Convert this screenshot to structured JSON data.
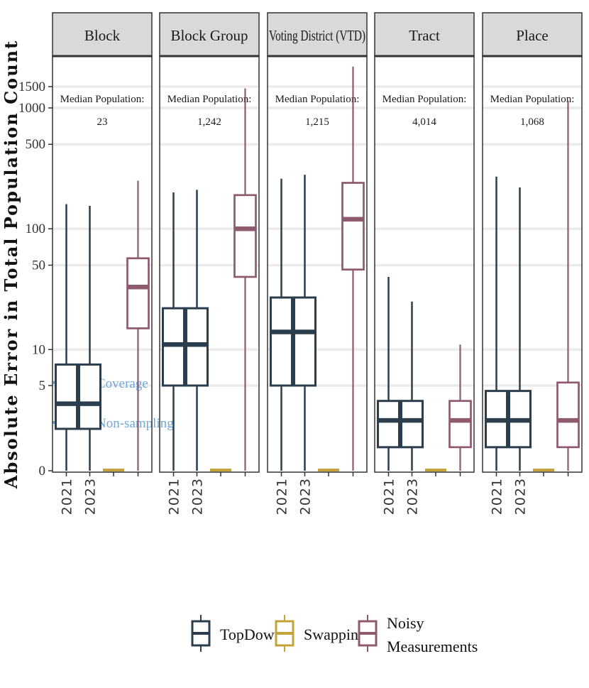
{
  "chart_data": {
    "type": "boxplot",
    "ylabel": "Absolute Error in Total Population Count",
    "y_scale": "pseudo-log",
    "y_ticks": [
      0,
      5,
      10,
      50,
      100,
      500,
      1000,
      1500
    ],
    "y_tick_labels": [
      "0",
      "5",
      "10",
      "50",
      "100",
      "500",
      "1000",
      "1500"
    ],
    "median_label": "Median Population:",
    "x_tick_labels": [
      "2021",
      "2023",
      "",
      ""
    ],
    "series": [
      {
        "name": "TopDown",
        "color": "#2c3e4c"
      },
      {
        "name": "Swapping",
        "color": "#c4a43a"
      },
      {
        "name": "Noisy Measurements",
        "color": "#8e5a6e"
      }
    ],
    "reference_lines": [
      {
        "label": "Coverage",
        "value": 5.3,
        "color": "#6fa8dc"
      },
      {
        "label": "Non-sampling",
        "value": 2.4,
        "color": "#6fa8dc"
      }
    ],
    "panels": [
      {
        "name": "Block",
        "median_population": "23",
        "boxes": [
          {
            "label": "2021",
            "series": "TopDown",
            "min": 0,
            "q1": 2.1,
            "median": 3.5,
            "q3": 7.5,
            "max": 160
          },
          {
            "label": "2023",
            "series": "TopDown",
            "min": 0,
            "q1": 2.1,
            "median": 3.5,
            "q3": 7.5,
            "max": 155
          },
          {
            "label": "",
            "series": "Swapping",
            "min": 0,
            "q1": 0,
            "median": 0,
            "q3": 0,
            "max": 0
          },
          {
            "label": "",
            "series": "Noisy Measurements",
            "min": 0,
            "q1": 15,
            "median": 33,
            "q3": 57,
            "max": 250
          }
        ]
      },
      {
        "name": "Block Group",
        "median_population": "1,242",
        "boxes": [
          {
            "label": "2021",
            "series": "TopDown",
            "min": 0,
            "q1": 5,
            "median": 11,
            "q3": 22,
            "max": 200
          },
          {
            "label": "2023",
            "series": "TopDown",
            "min": 0,
            "q1": 5,
            "median": 11,
            "q3": 22,
            "max": 210
          },
          {
            "label": "",
            "series": "Swapping",
            "min": 0,
            "q1": 0,
            "median": 0,
            "q3": 0,
            "max": 0
          },
          {
            "label": "",
            "series": "Noisy Measurements",
            "min": 0,
            "q1": 40,
            "median": 100,
            "q3": 190,
            "max": 1450
          }
        ]
      },
      {
        "name": "Voting District (VTD)",
        "median_population": "1,215",
        "boxes": [
          {
            "label": "2021",
            "series": "TopDown",
            "min": 0,
            "q1": 5,
            "median": 14,
            "q3": 27,
            "max": 260
          },
          {
            "label": "2023",
            "series": "TopDown",
            "min": 0,
            "q1": 5,
            "median": 14,
            "q3": 27,
            "max": 280
          },
          {
            "label": "",
            "series": "Swapping",
            "min": 0,
            "q1": 0,
            "median": 0,
            "q3": 0,
            "max": 0
          },
          {
            "label": "",
            "series": "Noisy Measurements",
            "min": 0,
            "q1": 46,
            "median": 120,
            "q3": 240,
            "max": 2200
          }
        ]
      },
      {
        "name": "Tract",
        "median_population": "4,014",
        "boxes": [
          {
            "label": "2021",
            "series": "TopDown",
            "min": 0,
            "q1": 1.4,
            "median": 2.5,
            "q3": 3.7,
            "max": 40
          },
          {
            "label": "2023",
            "series": "TopDown",
            "min": 0,
            "q1": 1.4,
            "median": 2.5,
            "q3": 3.7,
            "max": 25
          },
          {
            "label": "",
            "series": "Swapping",
            "min": 0,
            "q1": 0,
            "median": 0,
            "q3": 0,
            "max": 0
          },
          {
            "label": "",
            "series": "Noisy Measurements",
            "min": 0,
            "q1": 1.4,
            "median": 2.5,
            "q3": 3.7,
            "max": 11
          }
        ]
      },
      {
        "name": "Place",
        "median_population": "1,068",
        "boxes": [
          {
            "label": "2021",
            "series": "TopDown",
            "min": 0,
            "q1": 1.4,
            "median": 2.5,
            "q3": 4.5,
            "max": 270
          },
          {
            "label": "2023",
            "series": "TopDown",
            "min": 0,
            "q1": 1.4,
            "median": 2.5,
            "q3": 4.5,
            "max": 220
          },
          {
            "label": "",
            "series": "Swapping",
            "min": 0,
            "q1": 0,
            "median": 0,
            "q3": 0,
            "max": 0
          },
          {
            "label": "",
            "series": "Noisy Measurements",
            "min": 0,
            "q1": 1.4,
            "median": 2.5,
            "q3": 5.3,
            "max": 1150
          }
        ]
      }
    ],
    "legend": {
      "position": "bottom",
      "items": [
        {
          "series": "TopDown",
          "label": "TopDown"
        },
        {
          "series": "Swapping",
          "label": "Swapping"
        },
        {
          "series": "Noisy Measurements",
          "label": "Noisy",
          "label2": "Measurements"
        }
      ]
    }
  }
}
